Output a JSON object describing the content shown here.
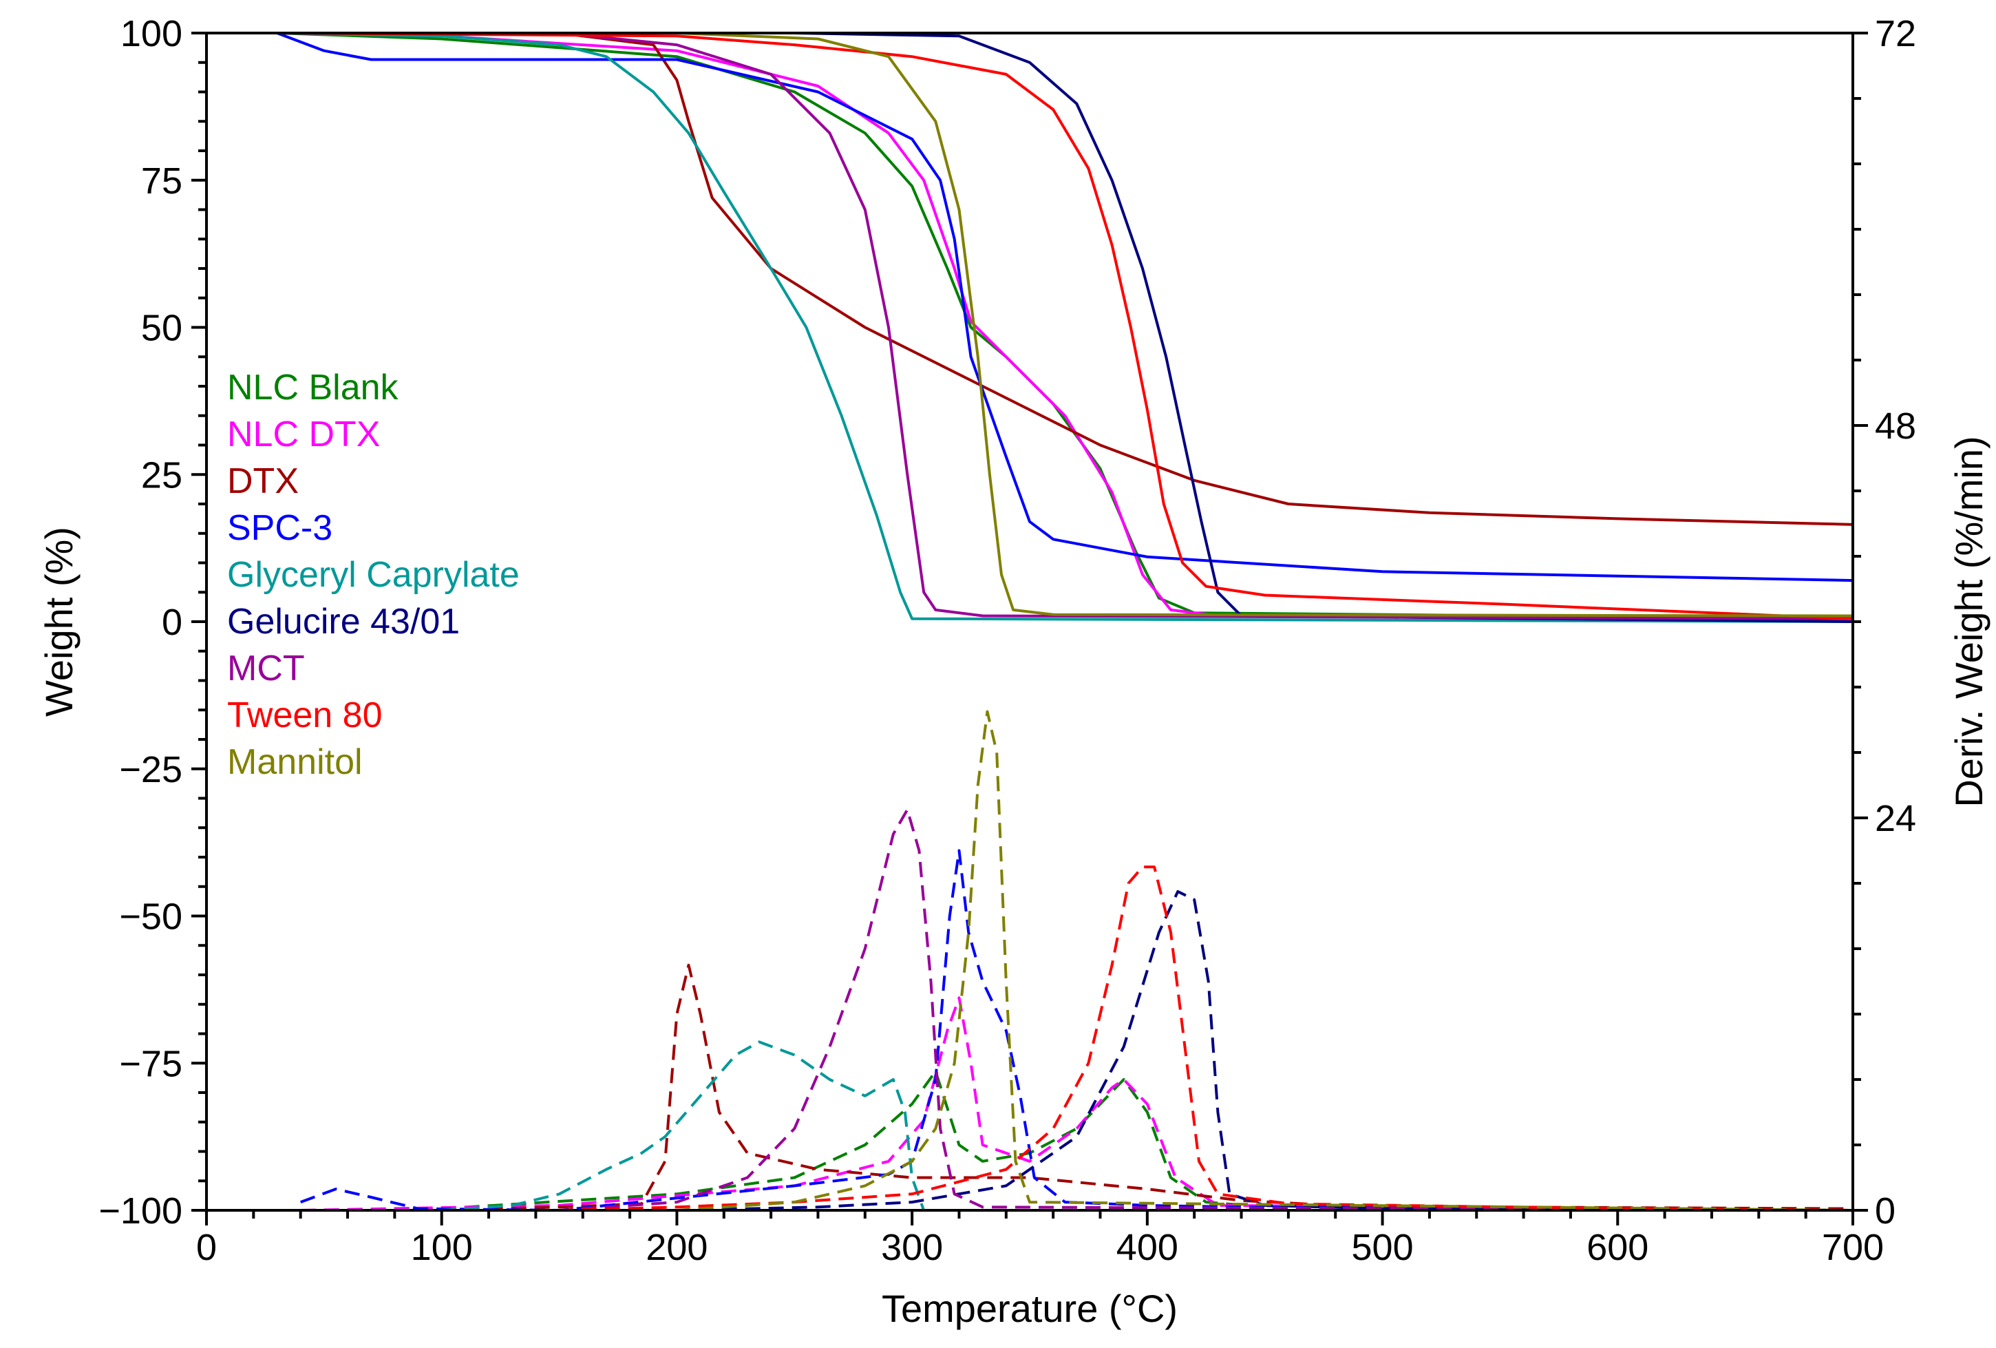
{
  "chart_data": {
    "type": "line",
    "xlabel": "Temperature (°C)",
    "ylabel": "Weight (%)",
    "y2label": "Deriv. Weight (%/min)",
    "xlim": [
      0,
      700
    ],
    "ylim": [
      -100,
      100
    ],
    "y2lim": [
      0,
      72
    ],
    "xticks": [
      "0",
      "100",
      "200",
      "300",
      "400",
      "500",
      "600",
      "700"
    ],
    "yticks": [
      "100",
      "75",
      "50",
      "25",
      "0",
      "−25",
      "−50",
      "−75",
      "−100"
    ],
    "y2ticks": [
      "72",
      "48",
      "24",
      "0"
    ],
    "legend_position": "left",
    "grid": false,
    "series": [
      {
        "name": "NLC Blank",
        "color": "#008000",
        "weight": [
          [
            30,
            100
          ],
          [
            100,
            99
          ],
          [
            200,
            96
          ],
          [
            250,
            90
          ],
          [
            280,
            83
          ],
          [
            300,
            74
          ],
          [
            315,
            60
          ],
          [
            325,
            50
          ],
          [
            340,
            45
          ],
          [
            360,
            37
          ],
          [
            380,
            26
          ],
          [
            395,
            12
          ],
          [
            405,
            4
          ],
          [
            420,
            1.5
          ],
          [
            700,
            0.5
          ]
        ],
        "deriv": [
          [
            40,
            0
          ],
          [
            100,
            0.1
          ],
          [
            200,
            1
          ],
          [
            250,
            2
          ],
          [
            280,
            4
          ],
          [
            300,
            6.5
          ],
          [
            310,
            8.5
          ],
          [
            320,
            4
          ],
          [
            330,
            3
          ],
          [
            350,
            3.5
          ],
          [
            370,
            5
          ],
          [
            390,
            8
          ],
          [
            400,
            6
          ],
          [
            410,
            2
          ],
          [
            425,
            0.5
          ],
          [
            450,
            0.2
          ],
          [
            700,
            0
          ]
        ]
      },
      {
        "name": "NLC DTX",
        "color": "#FF00FF",
        "weight": [
          [
            30,
            100
          ],
          [
            100,
            99.5
          ],
          [
            200,
            97
          ],
          [
            260,
            91
          ],
          [
            290,
            83
          ],
          [
            305,
            75
          ],
          [
            318,
            60
          ],
          [
            325,
            51
          ],
          [
            340,
            45
          ],
          [
            365,
            35
          ],
          [
            385,
            22
          ],
          [
            398,
            8
          ],
          [
            410,
            2
          ],
          [
            430,
            1
          ],
          [
            700,
            0.5
          ]
        ],
        "deriv": [
          [
            40,
            0
          ],
          [
            150,
            0.3
          ],
          [
            250,
            1.5
          ],
          [
            290,
            3
          ],
          [
            305,
            5.5
          ],
          [
            315,
            11
          ],
          [
            320,
            13
          ],
          [
            325,
            9
          ],
          [
            330,
            4
          ],
          [
            350,
            3
          ],
          [
            370,
            5
          ],
          [
            385,
            7.5
          ],
          [
            390,
            8
          ],
          [
            400,
            6.5
          ],
          [
            412,
            2
          ],
          [
            430,
            0.3
          ],
          [
            700,
            0
          ]
        ]
      },
      {
        "name": "DTX",
        "color": "#A00000",
        "weight": [
          [
            30,
            100
          ],
          [
            150,
            100
          ],
          [
            190,
            98
          ],
          [
            200,
            92
          ],
          [
            205,
            85
          ],
          [
            215,
            72
          ],
          [
            240,
            60
          ],
          [
            280,
            50
          ],
          [
            330,
            40
          ],
          [
            380,
            30
          ],
          [
            420,
            24
          ],
          [
            460,
            20
          ],
          [
            520,
            18.5
          ],
          [
            600,
            17.5
          ],
          [
            700,
            16.5
          ]
        ],
        "deriv": [
          [
            40,
            0
          ],
          [
            100,
            0
          ],
          [
            150,
            0.2
          ],
          [
            185,
            0.4
          ],
          [
            195,
            3
          ],
          [
            200,
            12
          ],
          [
            205,
            15
          ],
          [
            210,
            12
          ],
          [
            218,
            6
          ],
          [
            230,
            3.5
          ],
          [
            260,
            2.5
          ],
          [
            300,
            2
          ],
          [
            350,
            2
          ],
          [
            400,
            1.3
          ],
          [
            440,
            0.6
          ],
          [
            480,
            0.3
          ],
          [
            550,
            0.2
          ],
          [
            700,
            0.1
          ]
        ]
      },
      {
        "name": "SPC-3",
        "color": "#0000FF",
        "weight": [
          [
            30,
            100
          ],
          [
            50,
            97
          ],
          [
            70,
            95.5
          ],
          [
            200,
            95.5
          ],
          [
            260,
            90
          ],
          [
            300,
            82
          ],
          [
            312,
            75
          ],
          [
            318,
            65
          ],
          [
            325,
            45
          ],
          [
            340,
            28
          ],
          [
            350,
            17
          ],
          [
            360,
            14
          ],
          [
            400,
            11
          ],
          [
            500,
            8.5
          ],
          [
            700,
            7
          ]
        ],
        "deriv": [
          [
            40,
            0.5
          ],
          [
            55,
            1.3
          ],
          [
            70,
            0.8
          ],
          [
            90,
            0.1
          ],
          [
            150,
            0
          ],
          [
            250,
            1.5
          ],
          [
            290,
            2.2
          ],
          [
            300,
            3
          ],
          [
            310,
            8
          ],
          [
            316,
            18
          ],
          [
            320,
            22
          ],
          [
            324,
            17
          ],
          [
            330,
            14
          ],
          [
            340,
            11
          ],
          [
            346,
            7
          ],
          [
            352,
            2
          ],
          [
            365,
            0.5
          ],
          [
            400,
            0.3
          ],
          [
            440,
            0.2
          ],
          [
            700,
            0
          ]
        ]
      },
      {
        "name": "Glyceryl Caprylate",
        "color": "#009999",
        "weight": [
          [
            30,
            100
          ],
          [
            100,
            99.5
          ],
          [
            150,
            98
          ],
          [
            170,
            96
          ],
          [
            190,
            90
          ],
          [
            205,
            83
          ],
          [
            220,
            73
          ],
          [
            240,
            60
          ],
          [
            255,
            50
          ],
          [
            270,
            35
          ],
          [
            285,
            18
          ],
          [
            295,
            5
          ],
          [
            300,
            0.5
          ],
          [
            700,
            0
          ]
        ],
        "deriv": [
          [
            40,
            0
          ],
          [
            100,
            0
          ],
          [
            130,
            0.3
          ],
          [
            150,
            1
          ],
          [
            170,
            2.5
          ],
          [
            185,
            3.5
          ],
          [
            195,
            4.5
          ],
          [
            210,
            7
          ],
          [
            225,
            9.5
          ],
          [
            235,
            10.3
          ],
          [
            250,
            9.5
          ],
          [
            265,
            8
          ],
          [
            280,
            7
          ],
          [
            292,
            8
          ],
          [
            297,
            6
          ],
          [
            300,
            2
          ],
          [
            305,
            0
          ],
          [
            700,
            0
          ]
        ]
      },
      {
        "name": "Gelucire 43/01",
        "color": "#000080",
        "weight": [
          [
            30,
            100
          ],
          [
            250,
            100
          ],
          [
            320,
            99.5
          ],
          [
            350,
            95
          ],
          [
            370,
            88
          ],
          [
            385,
            75
          ],
          [
            398,
            60
          ],
          [
            408,
            45
          ],
          [
            416,
            30
          ],
          [
            423,
            17
          ],
          [
            430,
            5
          ],
          [
            440,
            1
          ],
          [
            700,
            0
          ]
        ],
        "deriv": [
          [
            40,
            0
          ],
          [
            200,
            0
          ],
          [
            260,
            0.2
          ],
          [
            300,
            0.5
          ],
          [
            340,
            1.5
          ],
          [
            370,
            4.5
          ],
          [
            390,
            10
          ],
          [
            405,
            17
          ],
          [
            413,
            19.5
          ],
          [
            420,
            19
          ],
          [
            426,
            14
          ],
          [
            430,
            6
          ],
          [
            435,
            1
          ],
          [
            450,
            0.3
          ],
          [
            500,
            0.1
          ],
          [
            700,
            0
          ]
        ]
      },
      {
        "name": "MCT",
        "color": "#990099",
        "weight": [
          [
            30,
            100
          ],
          [
            150,
            100
          ],
          [
            200,
            98
          ],
          [
            240,
            93
          ],
          [
            265,
            83
          ],
          [
            280,
            70
          ],
          [
            290,
            50
          ],
          [
            298,
            25
          ],
          [
            305,
            5
          ],
          [
            310,
            2
          ],
          [
            330,
            1
          ],
          [
            700,
            0.5
          ]
        ],
        "deriv": [
          [
            40,
            0
          ],
          [
            150,
            0
          ],
          [
            200,
            0.5
          ],
          [
            230,
            2
          ],
          [
            250,
            5
          ],
          [
            265,
            10
          ],
          [
            280,
            16
          ],
          [
            292,
            23
          ],
          [
            298,
            24.5
          ],
          [
            303,
            22
          ],
          [
            308,
            14
          ],
          [
            312,
            5
          ],
          [
            318,
            1
          ],
          [
            330,
            0.2
          ],
          [
            700,
            0
          ]
        ]
      },
      {
        "name": "Tween 80",
        "color": "#FF0000",
        "weight": [
          [
            30,
            100
          ],
          [
            200,
            99.5
          ],
          [
            250,
            98
          ],
          [
            300,
            96
          ],
          [
            340,
            93
          ],
          [
            360,
            87
          ],
          [
            375,
            77
          ],
          [
            385,
            64
          ],
          [
            393,
            50
          ],
          [
            400,
            36
          ],
          [
            407,
            20
          ],
          [
            415,
            10
          ],
          [
            425,
            6
          ],
          [
            450,
            4.5
          ],
          [
            550,
            3
          ],
          [
            700,
            0.5
          ]
        ],
        "deriv": [
          [
            40,
            0
          ],
          [
            150,
            0
          ],
          [
            200,
            0.2
          ],
          [
            250,
            0.5
          ],
          [
            300,
            1
          ],
          [
            340,
            2.5
          ],
          [
            360,
            5
          ],
          [
            375,
            9
          ],
          [
            385,
            15
          ],
          [
            392,
            20
          ],
          [
            398,
            21
          ],
          [
            403,
            21
          ],
          [
            410,
            17
          ],
          [
            416,
            10
          ],
          [
            422,
            3
          ],
          [
            430,
            1
          ],
          [
            460,
            0.4
          ],
          [
            600,
            0.1
          ],
          [
            700,
            0
          ]
        ]
      },
      {
        "name": "Mannitol",
        "color": "#808000",
        "weight": [
          [
            30,
            100
          ],
          [
            200,
            100
          ],
          [
            260,
            99
          ],
          [
            290,
            96
          ],
          [
            310,
            85
          ],
          [
            320,
            70
          ],
          [
            328,
            45
          ],
          [
            333,
            25
          ],
          [
            338,
            8
          ],
          [
            343,
            2
          ],
          [
            360,
            1.2
          ],
          [
            700,
            1
          ]
        ],
        "deriv": [
          [
            40,
            0
          ],
          [
            200,
            0
          ],
          [
            250,
            0.5
          ],
          [
            280,
            1.5
          ],
          [
            300,
            3
          ],
          [
            310,
            5
          ],
          [
            318,
            9
          ],
          [
            324,
            17
          ],
          [
            328,
            26
          ],
          [
            332,
            30.5
          ],
          [
            336,
            28
          ],
          [
            340,
            14
          ],
          [
            344,
            3
          ],
          [
            350,
            0.5
          ],
          [
            700,
            0
          ]
        ]
      }
    ]
  }
}
